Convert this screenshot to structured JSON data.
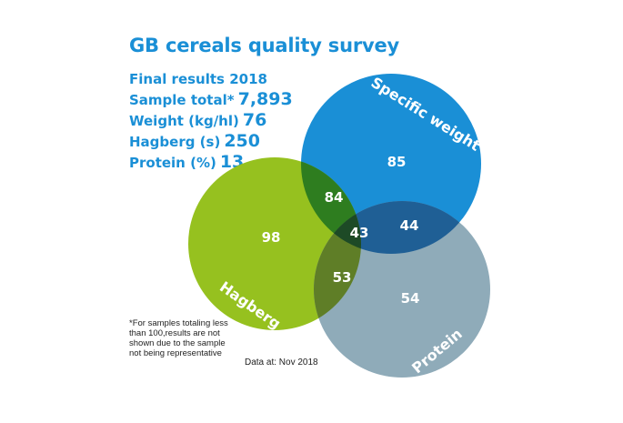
{
  "title": "GB cereals quality survey",
  "stats": {
    "final": "Final results 2018",
    "sample_label": "Sample total*",
    "sample_value": "7,893",
    "weight_label": "Weight (kg/hl)",
    "weight_value": "76",
    "hagberg_label": "Hagberg (s)",
    "hagberg_value": "250",
    "protein_label": "Protein (%)",
    "protein_value": "13"
  },
  "venn": {
    "sets": {
      "specific_weight": "Specific weight",
      "hagberg": "Hagberg",
      "protein": "Protein"
    },
    "regions": {
      "specific_weight_only": "85",
      "hagberg_only": "98",
      "protein_only": "54",
      "hagberg_specific_weight": "84",
      "specific_weight_protein": "44",
      "hagberg_protein": "53",
      "all_three": "43"
    },
    "colors": {
      "specific_weight": "#1a8fd6",
      "hagberg": "#96c11f",
      "protein": "#8fabb9",
      "hagberg_specific_weight": "#2e7d1f",
      "specific_weight_protein": "#1f5f95",
      "hagberg_protein": "#5f7e27",
      "all_three": "#1d4a26"
    }
  },
  "footnote": "*For samples totaling less than 100,results are not shown due to the sample not being representative",
  "data_date": "Data at: Nov 2018"
}
